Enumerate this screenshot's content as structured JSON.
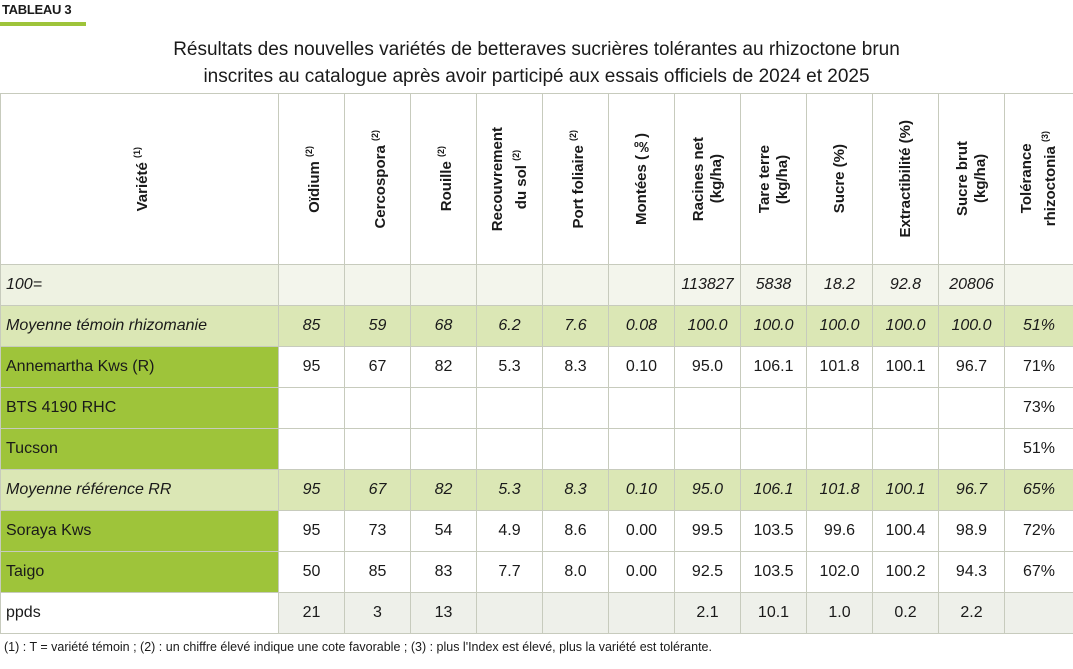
{
  "tag": "TABLEAU 3",
  "title": [
    "Résultats des nouvelles variétés de betteraves sucrières tolérantes au rhizoctone brun",
    "inscrites au catalogue après avoir participé aux essais officiels de 2024 et 2025"
  ],
  "table": {
    "headers": [
      {
        "lines": [
          "Variété"
        ],
        "note": "(1)"
      },
      {
        "lines": [
          "Oïdium"
        ],
        "note": "(2)"
      },
      {
        "lines": [
          "Cercospora"
        ],
        "note": "(2)"
      },
      {
        "lines": [
          "Rouille"
        ],
        "note": "(2)"
      },
      {
        "lines": [
          "Recouvrement",
          "du sol"
        ],
        "note": "(2)"
      },
      {
        "lines": [
          "Port foliaire"
        ],
        "note": "(2)"
      },
      {
        "lines": [
          "Montées (‰)"
        ]
      },
      {
        "lines": [
          "Racines net",
          "(kg/ha)"
        ]
      },
      {
        "lines": [
          "Tare terre",
          "(kg/ha)"
        ]
      },
      {
        "lines": [
          "Sucre (%)"
        ]
      },
      {
        "lines": [
          "Extractibilité (%)"
        ]
      },
      {
        "lines": [
          "Sucre brut",
          "(kg/ha)"
        ]
      },
      {
        "lines": [
          "Tolérance",
          "rhizoctonia"
        ],
        "note": "(3)"
      }
    ],
    "rows": [
      [
        "100=",
        null,
        null,
        null,
        null,
        null,
        null,
        "113827",
        "5838",
        "18.2",
        "92.8",
        "20806",
        null
      ],
      [
        "Moyenne témoin rhizomanie",
        "85",
        "59",
        "68",
        "6.2",
        "7.6",
        "0.08",
        "100.0",
        "100.0",
        "100.0",
        "100.0",
        "100.0",
        "51%"
      ],
      [
        "Annemartha Kws (R)",
        "95",
        "67",
        "82",
        "5.3",
        "8.3",
        "0.10",
        "95.0",
        "106.1",
        "101.8",
        "100.1",
        "96.7",
        "71%"
      ],
      [
        "BTS 4190 RHC",
        null,
        null,
        null,
        null,
        null,
        null,
        null,
        null,
        null,
        null,
        null,
        "73%"
      ],
      [
        "Tucson",
        null,
        null,
        null,
        null,
        null,
        null,
        null,
        null,
        null,
        null,
        null,
        "51%"
      ],
      [
        "Moyenne référence RR",
        "95",
        "67",
        "82",
        "5.3",
        "8.3",
        "0.10",
        "95.0",
        "106.1",
        "101.8",
        "100.1",
        "96.7",
        "65%"
      ],
      [
        "Soraya Kws",
        "95",
        "73",
        "54",
        "4.9",
        "8.6",
        "0.00",
        "99.5",
        "103.5",
        "99.6",
        "100.4",
        "98.9",
        "72%"
      ],
      [
        "Taigo",
        "50",
        "85",
        "83",
        "7.7",
        "8.0",
        "0.00",
        "92.5",
        "103.5",
        "102.0",
        "100.2",
        "94.3",
        "67%"
      ],
      [
        "ppds",
        "21",
        "3",
        "13",
        null,
        null,
        null,
        "2.1",
        "10.1",
        "1.0",
        "0.2",
        "2.2",
        null
      ]
    ]
  },
  "footnote": "(1) : T = variété témoin ; (2) : un chiffre élevé indique une cote favorable ; (3) : plus l'Index est élevé, plus la variété est tolérante."
}
